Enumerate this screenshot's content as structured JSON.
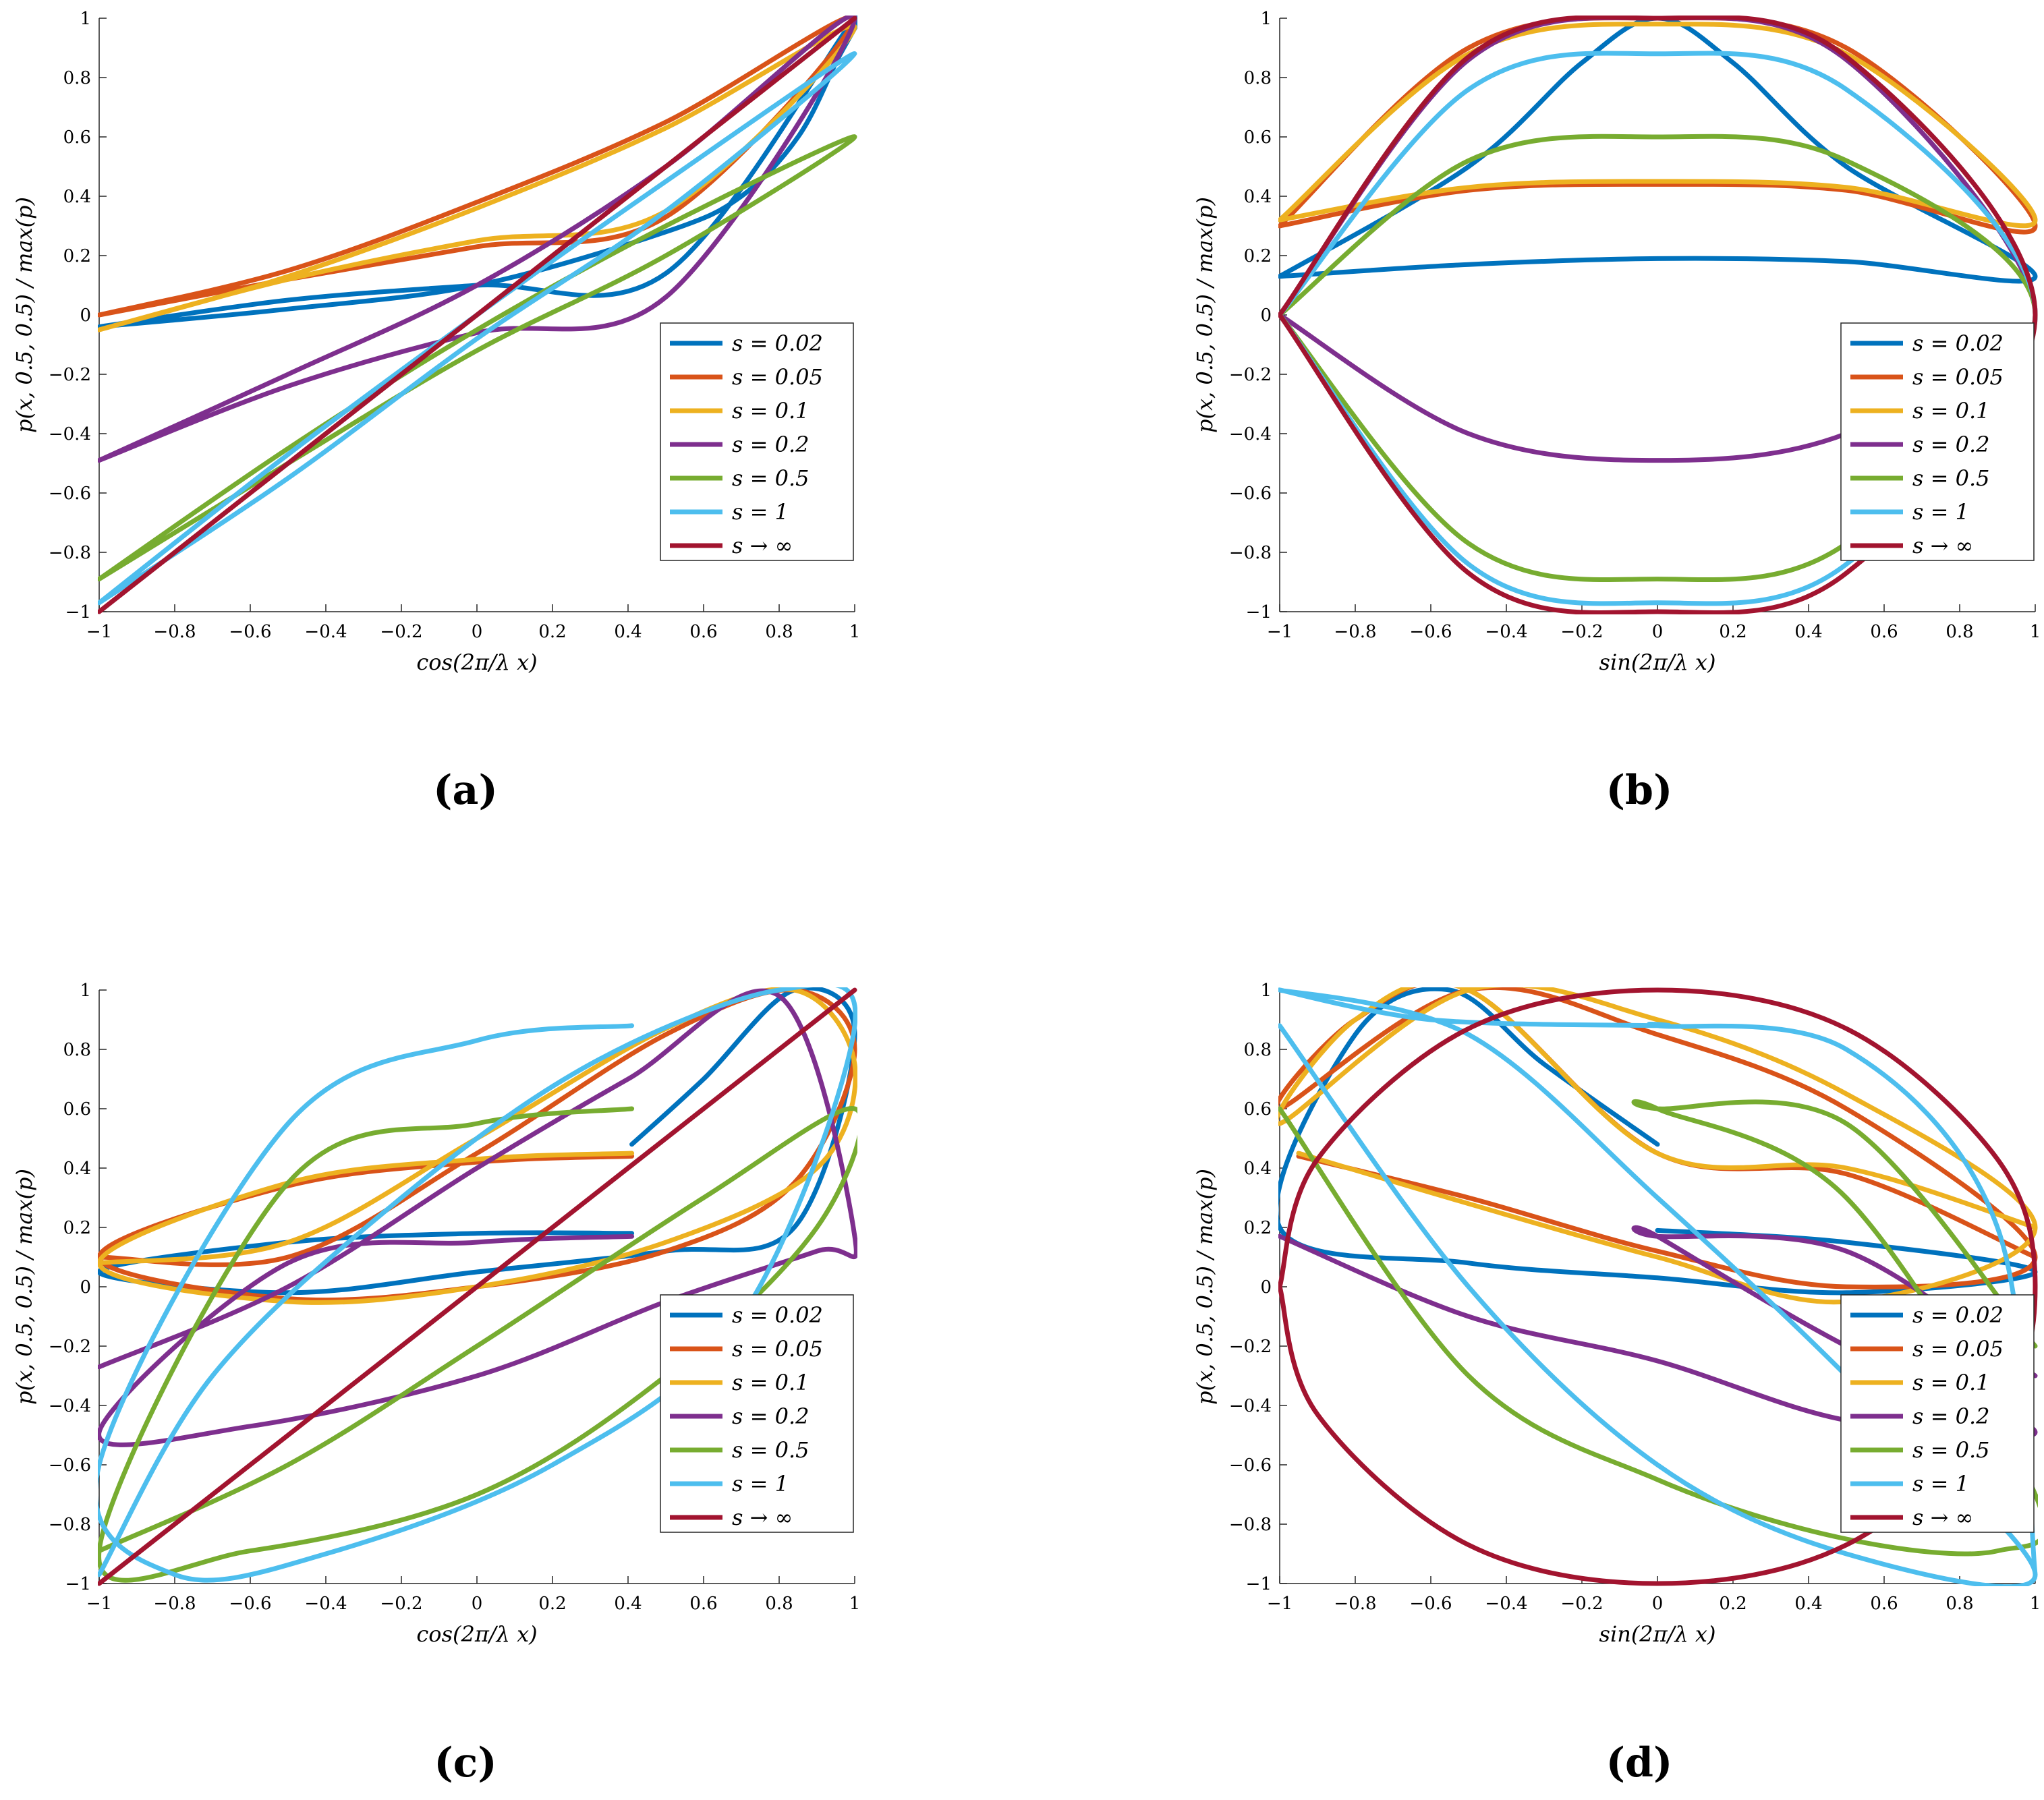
{
  "figure": {
    "panel_labels": [
      "(a)",
      "(b)",
      "(c)",
      "(d)"
    ]
  },
  "legend": {
    "entries": [
      {
        "label": "s = 0.02",
        "color": "#0072BD"
      },
      {
        "label": "s = 0.05",
        "color": "#D95319"
      },
      {
        "label": "s = 0.1",
        "color": "#EDB120"
      },
      {
        "label": "s = 0.2",
        "color": "#7E2F8E"
      },
      {
        "label": "s = 0.5",
        "color": "#77AC30"
      },
      {
        "label": "s = 1",
        "color": "#4DBEEE"
      },
      {
        "label": "s → ∞",
        "color": "#A2142F"
      }
    ]
  },
  "chart_data": [
    {
      "panel": "(a)",
      "type": "line",
      "title": "",
      "xlabel": "cos(2π/λ x)",
      "ylabel": "p(x, 0.5, 0.5) / max(p)",
      "xlim": [
        -1,
        1
      ],
      "ylim": [
        -1,
        1
      ],
      "xticks": [
        "−1",
        "−0.8",
        "−0.6",
        "−0.4",
        "−0.2",
        "0",
        "0.2",
        "0.4",
        "0.6",
        "0.8",
        "1"
      ],
      "yticks": [
        "−1",
        "−0.8",
        "−0.6",
        "−0.4",
        "−0.2",
        "0",
        "0.2",
        "0.4",
        "0.6",
        "0.8",
        "1"
      ],
      "series": [
        {
          "name": "s = 0.02",
          "x": [
            -1,
            -0.5,
            0,
            0.5,
            0.7,
            0.85,
            0.95,
            1,
            0.5,
            0,
            -0.5,
            -1
          ],
          "y": [
            -0.04,
            0.02,
            0.1,
            0.28,
            0.4,
            0.6,
            0.85,
            1,
            0.14,
            0.1,
            0.05,
            -0.04
          ]
        },
        {
          "name": "s = 0.05",
          "x": [
            -1,
            -0.5,
            0,
            0.5,
            1,
            0.5,
            0,
            -0.5,
            -1
          ],
          "y": [
            0,
            0.15,
            0.38,
            0.65,
            1,
            0.33,
            0.23,
            0.12,
            0
          ]
        },
        {
          "name": "s = 0.1",
          "x": [
            -1,
            -0.5,
            0,
            0.5,
            1,
            0.5,
            0,
            -0.5,
            -1
          ],
          "y": [
            -0.05,
            0.13,
            0.36,
            0.63,
            0.97,
            0.35,
            0.25,
            0.12,
            -0.05
          ]
        },
        {
          "name": "s = 0.2",
          "x": [
            -1,
            -0.5,
            0,
            0.5,
            1,
            0.5,
            0,
            -0.5,
            -1
          ],
          "y": [
            -0.49,
            -0.2,
            0.1,
            0.5,
            1,
            0.06,
            -0.06,
            -0.24,
            -0.49
          ]
        },
        {
          "name": "s = 0.5",
          "x": [
            -1,
            -0.5,
            0,
            0.5,
            1,
            0.5,
            0,
            -0.5,
            -1
          ],
          "y": [
            -0.89,
            -0.5,
            -0.12,
            0.2,
            0.6,
            0.3,
            -0.05,
            -0.45,
            -0.89
          ]
        },
        {
          "name": "s = 1",
          "x": [
            -1,
            -0.5,
            0,
            0.5,
            1,
            0.5,
            0,
            -0.5,
            -1
          ],
          "y": [
            -0.97,
            -0.55,
            -0.08,
            0.35,
            0.88,
            0.45,
            0,
            -0.47,
            -0.97
          ]
        },
        {
          "name": "s → ∞",
          "x": [
            -1,
            1
          ],
          "y": [
            -1,
            1
          ]
        }
      ]
    },
    {
      "panel": "(b)",
      "type": "line",
      "title": "",
      "xlabel": "sin(2π/λ x)",
      "ylabel": "p(x, 0.5, 0.5) / max(p)",
      "xlim": [
        -1,
        1
      ],
      "ylim": [
        -1,
        1
      ],
      "xticks": [
        "−1",
        "−0.8",
        "−0.6",
        "−0.4",
        "−0.2",
        "0",
        "0.2",
        "0.4",
        "0.6",
        "0.8",
        "1"
      ],
      "yticks": [
        "−1",
        "−0.8",
        "−0.6",
        "−0.4",
        "−0.2",
        "0",
        "0.2",
        "0.4",
        "0.6",
        "0.8",
        "1"
      ],
      "series": [
        {
          "name": "s = 0.02",
          "x": [
            -1,
            -0.5,
            -0.2,
            0,
            0.2,
            0.5,
            1,
            0.5,
            0,
            -0.5,
            -1
          ],
          "y": [
            0.13,
            0.5,
            0.85,
            1,
            0.85,
            0.5,
            0.13,
            0.18,
            0.19,
            0.17,
            0.13
          ]
        },
        {
          "name": "s = 0.05",
          "x": [
            -1,
            -0.5,
            0,
            0.5,
            1,
            0.5,
            0,
            -0.5,
            -1
          ],
          "y": [
            0.3,
            0.9,
            1,
            0.9,
            0.3,
            0.42,
            0.44,
            0.42,
            0.3
          ]
        },
        {
          "name": "s = 0.1",
          "x": [
            -1,
            -0.5,
            0,
            0.5,
            1,
            0.5,
            0,
            -0.5,
            -1
          ],
          "y": [
            0.32,
            0.88,
            0.98,
            0.88,
            0.32,
            0.43,
            0.45,
            0.43,
            0.32
          ]
        },
        {
          "name": "s = 0.2",
          "x": [
            -1,
            -0.5,
            0,
            0.5,
            1,
            0.5,
            0,
            -0.5,
            -1
          ],
          "y": [
            0,
            0.86,
            1,
            0.86,
            0,
            -0.4,
            -0.49,
            -0.4,
            0
          ]
        },
        {
          "name": "s = 0.5",
          "x": [
            -1,
            -0.5,
            0,
            0.5,
            1,
            0.5,
            0,
            -0.5,
            -1
          ],
          "y": [
            0,
            0.52,
            0.6,
            0.52,
            0,
            -0.77,
            -0.89,
            -0.77,
            0
          ]
        },
        {
          "name": "s = 1",
          "x": [
            -1,
            -0.5,
            0,
            0.5,
            1,
            0.5,
            0,
            -0.5,
            -1
          ],
          "y": [
            0,
            0.76,
            0.88,
            0.76,
            0,
            -0.84,
            -0.97,
            -0.84,
            0
          ]
        },
        {
          "name": "s → ∞",
          "x": [
            -1,
            -0.5,
            0,
            0.5,
            1,
            0.5,
            0,
            -0.5,
            -1
          ],
          "y": [
            0,
            0.87,
            1,
            0.87,
            0,
            -0.87,
            -1,
            -0.87,
            0
          ]
        }
      ]
    },
    {
      "panel": "(c)",
      "type": "line",
      "title": "",
      "xlabel": "cos(2π/λ x)",
      "ylabel": "p(x, 0.5, 0.5) / max(p)",
      "xlim": [
        -1,
        1
      ],
      "ylim": [
        -1,
        1
      ],
      "xticks": [
        "−1",
        "−0.8",
        "−0.6",
        "−0.4",
        "−0.2",
        "0",
        "0.2",
        "0.4",
        "0.6",
        "0.8",
        "1"
      ],
      "yticks": [
        "−1",
        "−0.8",
        "−0.6",
        "−0.4",
        "−0.2",
        "0",
        "0.2",
        "0.4",
        "0.6",
        "0.8",
        "1"
      ],
      "series": [
        {
          "name": "s = 0.02",
          "x": [
            0.41,
            0.6,
            0.84,
            1,
            0.84,
            0.5,
            0,
            -0.5,
            -1,
            -0.5,
            0,
            0.41
          ],
          "y": [
            0.48,
            0.7,
            1,
            0.85,
            0.2,
            0.12,
            0.05,
            -0.02,
            0.05,
            0.15,
            0.18,
            0.18
          ]
        },
        {
          "name": "s = 0.05",
          "x": [
            0.41,
            0,
            -0.5,
            -1,
            -0.5,
            0,
            0.5,
            0.84,
            1,
            0.84,
            0.5,
            0,
            -0.5,
            -1
          ],
          "y": [
            0.44,
            0.42,
            0.34,
            0.1,
            -0.04,
            0,
            0.12,
            0.35,
            0.8,
            1,
            0.85,
            0.45,
            0.1,
            0.1
          ]
        },
        {
          "name": "s = 0.1",
          "x": [
            0.41,
            0,
            -0.5,
            -1,
            -0.5,
            0,
            0.5,
            0.9,
            1,
            0.84,
            0.5,
            0,
            -0.5,
            -1
          ],
          "y": [
            0.45,
            0.43,
            0.35,
            0.08,
            -0.05,
            0,
            0.15,
            0.4,
            0.75,
            1,
            0.87,
            0.5,
            0.15,
            0.08
          ]
        },
        {
          "name": "s = 0.2",
          "x": [
            0.41,
            0,
            -0.5,
            -1,
            -0.6,
            0,
            0.5,
            0.9,
            1,
            0.8,
            0.4,
            0,
            -0.5,
            -1
          ],
          "y": [
            0.17,
            0.15,
            0.08,
            -0.49,
            -0.47,
            -0.3,
            -0.05,
            0.12,
            0.17,
            0.98,
            0.7,
            0.4,
            0,
            -0.27
          ]
        },
        {
          "name": "s = 0.5",
          "x": [
            0.41,
            0,
            -0.5,
            -1,
            -0.6,
            0,
            0.5,
            0.9,
            1,
            0.6,
            0,
            -0.5,
            -1
          ],
          "y": [
            0.6,
            0.55,
            0.35,
            -0.89,
            -0.89,
            -0.7,
            -0.3,
            0.2,
            0.6,
            0.3,
            -0.2,
            -0.6,
            -0.89
          ]
        },
        {
          "name": "s = 1",
          "x": [
            0.41,
            0,
            -0.5,
            -1,
            -0.8,
            -0.4,
            0.2,
            0.7,
            1,
            0.8,
            0.3,
            -0.2,
            -0.7,
            -1
          ],
          "y": [
            0.88,
            0.83,
            0.55,
            -0.6,
            -0.97,
            -0.9,
            -0.6,
            -0.1,
            0.88,
            1,
            0.75,
            0.3,
            -0.3,
            -0.97
          ]
        },
        {
          "name": "s → ∞",
          "x": [
            -1,
            1
          ],
          "y": [
            -1,
            1
          ]
        }
      ]
    },
    {
      "panel": "(d)",
      "type": "line",
      "title": "",
      "xlabel": "sin(2π/λ x)",
      "ylabel": "p(x, 0.5, 0.5) / max(p)",
      "xlim": [
        -1,
        1
      ],
      "ylim": [
        -1,
        1
      ],
      "xticks": [
        "−1",
        "−0.8",
        "−0.6",
        "−0.4",
        "−0.2",
        "0",
        "0.2",
        "0.4",
        "0.6",
        "0.8",
        "1"
      ],
      "yticks": [
        "−1",
        "−0.8",
        "−0.6",
        "−0.4",
        "−0.2",
        "0",
        "0.2",
        "0.4",
        "0.6",
        "0.8",
        "1"
      ],
      "series": [
        {
          "name": "s = 0.02",
          "x": [
            0,
            -0.3,
            -0.55,
            -0.8,
            -1,
            -0.5,
            0,
            0.5,
            1,
            0.5,
            0
          ],
          "y": [
            0.48,
            0.75,
            1,
            0.85,
            0.2,
            0.08,
            0.03,
            -0.02,
            0.05,
            0.15,
            0.19
          ]
        },
        {
          "name": "s = 0.05",
          "x": [
            -0.95,
            -0.5,
            0,
            0.5,
            1,
            0.5,
            0,
            -0.5,
            -1,
            -0.8,
            -0.5,
            0,
            0.5,
            1
          ],
          "y": [
            0.44,
            0.3,
            0.12,
            0,
            0.1,
            0.6,
            0.85,
            1,
            0.6,
            0.9,
            1,
            0.45,
            0.38,
            0.1
          ]
        },
        {
          "name": "s = 0.1",
          "x": [
            -0.95,
            -0.5,
            0,
            0.5,
            1,
            0.5,
            0,
            -0.5,
            -1,
            -0.8,
            -0.5,
            0,
            0.5,
            1
          ],
          "y": [
            0.45,
            0.28,
            0.1,
            -0.05,
            0.2,
            0.65,
            0.9,
            1,
            0.55,
            0.9,
            1,
            0.45,
            0.4,
            0.2
          ]
        },
        {
          "name": "s = 0.2",
          "x": [
            -1,
            -0.5,
            0,
            0.5,
            1,
            0.5,
            0,
            0,
            0.5,
            1
          ],
          "y": [
            0.17,
            -0.1,
            -0.25,
            -0.45,
            -0.49,
            -0.2,
            0.17,
            0.17,
            0.12,
            -0.3
          ]
        },
        {
          "name": "s = 0.5",
          "x": [
            -1,
            -0.5,
            0,
            0.5,
            0.9,
            1,
            0.5,
            0,
            0,
            0.5,
            1
          ],
          "y": [
            0.6,
            -0.3,
            -0.65,
            -0.85,
            -0.89,
            -0.7,
            0.3,
            0.6,
            0.6,
            0.55,
            -0.2
          ]
        },
        {
          "name": "s = 1",
          "x": [
            -1,
            -0.5,
            0,
            0.5,
            1,
            0.5,
            0,
            -0.5,
            -1,
            -0.6,
            0,
            0,
            0.5,
            0.9,
            1
          ],
          "y": [
            0.88,
            0,
            -0.6,
            -0.9,
            -0.97,
            -0.3,
            0.3,
            0.85,
            1,
            0.9,
            0.88,
            0.88,
            0.8,
            0.2,
            -0.97
          ]
        },
        {
          "name": "s → ∞",
          "x": [
            -1,
            -0.9,
            -0.5,
            0,
            0.5,
            0.9,
            1,
            0.9,
            0.5,
            0,
            -0.5,
            -0.9,
            -1
          ],
          "y": [
            0,
            0.43,
            0.87,
            1,
            0.87,
            0.43,
            0,
            -0.43,
            -0.87,
            -1,
            -0.87,
            -0.43,
            0
          ]
        }
      ]
    }
  ]
}
